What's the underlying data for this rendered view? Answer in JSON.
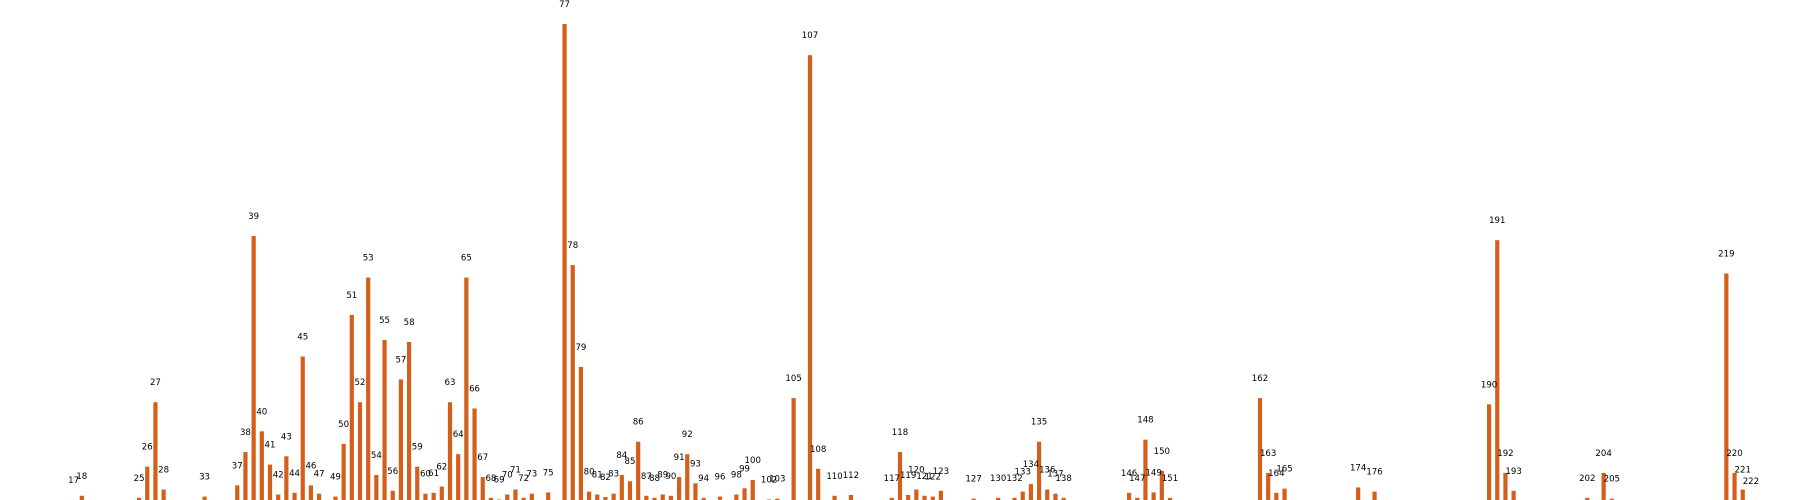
{
  "chart_data": {
    "type": "bar",
    "title": "",
    "xlabel": "",
    "ylabel": "",
    "bar_color": "#d35f1a",
    "grid": false,
    "legend": "none",
    "xlim": [
      8,
      228
    ],
    "ylim": [
      0,
      115
    ],
    "categories": [
      17,
      18,
      25,
      26,
      27,
      28,
      33,
      37,
      38,
      39,
      40,
      41,
      42,
      43,
      44,
      45,
      46,
      47,
      49,
      50,
      51,
      52,
      53,
      54,
      55,
      56,
      57,
      58,
      59,
      60,
      61,
      62,
      63,
      64,
      65,
      66,
      67,
      68,
      69,
      70,
      71,
      72,
      73,
      75,
      77,
      78,
      79,
      80,
      81,
      82,
      83,
      84,
      85,
      86,
      87,
      88,
      89,
      90,
      91,
      92,
      93,
      94,
      96,
      98,
      99,
      100,
      102,
      103,
      105,
      107,
      108,
      110,
      112,
      117,
      118,
      119,
      120,
      121,
      122,
      123,
      127,
      130,
      132,
      133,
      134,
      135,
      136,
      137,
      138,
      146,
      147,
      148,
      149,
      150,
      151,
      162,
      163,
      164,
      165,
      174,
      176,
      190,
      191,
      192,
      193,
      202,
      204,
      205,
      219,
      220,
      221,
      222
    ],
    "values": [
      0.5,
      1.5,
      1,
      8.5,
      24,
      3,
      1.3,
      4,
      12,
      64,
      17,
      9,
      1.8,
      11,
      2.2,
      35,
      4,
      2,
      1.3,
      14,
      45,
      24,
      54,
      6.5,
      39,
      2.7,
      29.5,
      38.5,
      8.5,
      2,
      2.2,
      3.7,
      24,
      11.5,
      54,
      22.5,
      6,
      1,
      0.6,
      1.8,
      3,
      1,
      2,
      2.3,
      115,
      57,
      32.5,
      2.5,
      1.8,
      1.2,
      2,
      6.5,
      5,
      14.5,
      1.5,
      1,
      1.8,
      1.5,
      6,
      11.5,
      4.5,
      1,
      1.3,
      1.8,
      3.3,
      5.3,
      0.6,
      0.8,
      25,
      107.5,
      8,
      1.5,
      1.7,
      1,
      12,
      1.7,
      3,
      1.5,
      1.3,
      2.7,
      0.8,
      1,
      1,
      2.5,
      4.3,
      14.5,
      3,
      2,
      1,
      2.2,
      1,
      15,
      2.3,
      7.5,
      1,
      25,
      7,
      2.2,
      3.2,
      3.5,
      2.5,
      23.5,
      63,
      7,
      2.7,
      1,
      7,
      0.8,
      55,
      7,
      3,
      0.3
    ]
  }
}
